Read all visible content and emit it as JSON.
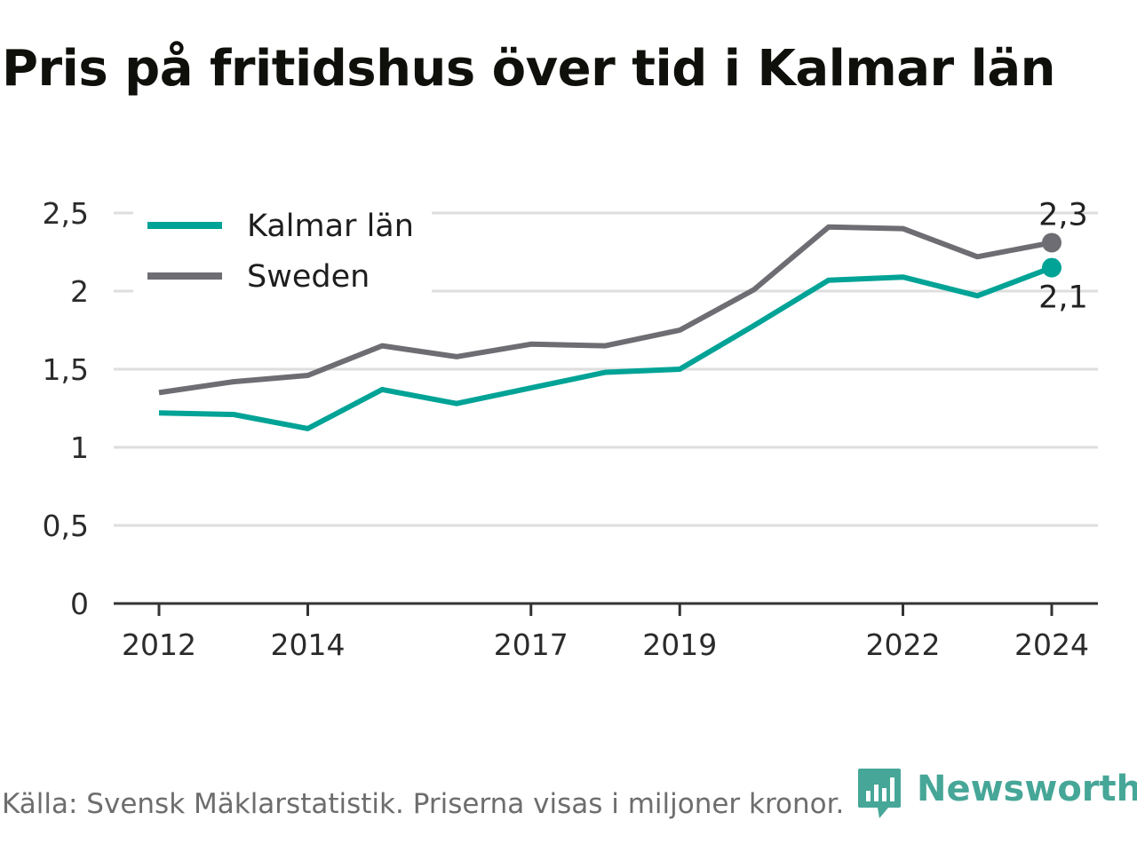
{
  "title": "Pris på fritidshus över tid i Kalmar län",
  "footer": {
    "source": "Källa: Svensk Mäklarstatistik. Priserna visas i miljoner kronor."
  },
  "brand": {
    "name": "Newsworthy",
    "icon": "newsworthy-logo-icon",
    "color": "#46a697"
  },
  "chart_data": {
    "type": "line",
    "title": "Pris på fritidshus över tid i Kalmar län",
    "xlabel": "",
    "ylabel": "",
    "x": [
      2012,
      2013,
      2014,
      2015,
      2016,
      2017,
      2018,
      2019,
      2020,
      2021,
      2022,
      2023,
      2024
    ],
    "xlim": [
      2011.7,
      2024.3
    ],
    "xticks": [
      "2012",
      "2014",
      "2017",
      "2019",
      "2022",
      "2024"
    ],
    "ylim": [
      0,
      2.5
    ],
    "yticks": [
      "0",
      "0,5",
      "1",
      "1,5",
      "2",
      "2,5"
    ],
    "grid": "horizontal",
    "legend": "top-left",
    "series": [
      {
        "name": "Kalmar län",
        "color": "#00a396",
        "values": [
          1.22,
          1.21,
          1.12,
          1.37,
          1.28,
          1.38,
          1.48,
          1.5,
          1.78,
          2.07,
          2.09,
          1.97,
          2.15
        ],
        "end_label": "2,1"
      },
      {
        "name": "Sweden",
        "color": "#6e6d73",
        "values": [
          1.35,
          1.42,
          1.46,
          1.65,
          1.58,
          1.66,
          1.65,
          1.75,
          2.01,
          2.41,
          2.4,
          2.22,
          2.31
        ],
        "end_label": "2,3"
      }
    ]
  }
}
